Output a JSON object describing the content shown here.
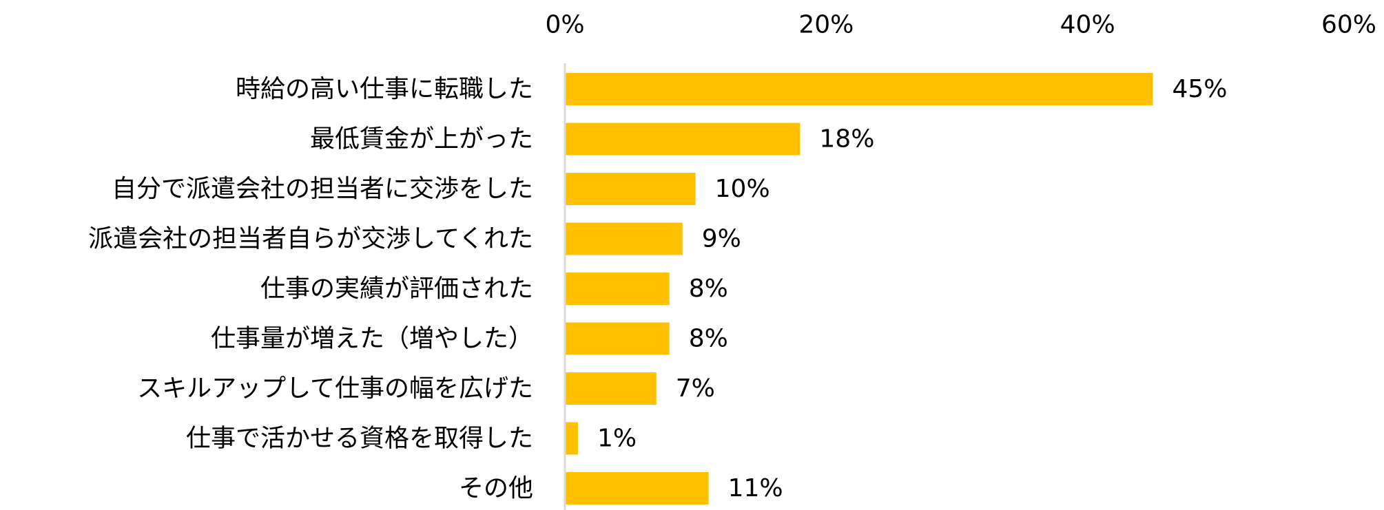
{
  "chart_data": {
    "type": "bar",
    "orientation": "horizontal",
    "categories": [
      "時給の高い仕事に転職した",
      "最低賃金が上がった",
      "自分で派遣会社の担当者に交渉をした",
      "派遣会社の担当者自らが交渉してくれた",
      "仕事の実績が評価された",
      "仕事量が増えた（増やした）",
      "スキルアップして仕事の幅を広げた",
      "仕事で活かせる資格を取得した",
      "その他"
    ],
    "values": [
      45,
      18,
      10,
      9,
      8,
      8,
      7,
      1,
      11
    ],
    "data_labels": [
      "45%",
      "18%",
      "10%",
      "9%",
      "8%",
      "8%",
      "7%",
      "1%",
      "11%"
    ],
    "xlim": [
      0,
      60
    ],
    "x_ticks": [
      0,
      20,
      40,
      60
    ],
    "x_tick_labels": [
      "0%",
      "20%",
      "40%",
      "60%"
    ],
    "x_axis_position": "top",
    "grid": false,
    "legend": "none",
    "bar_color": "#FFC000",
    "axis_color": "#D9D9D9"
  }
}
